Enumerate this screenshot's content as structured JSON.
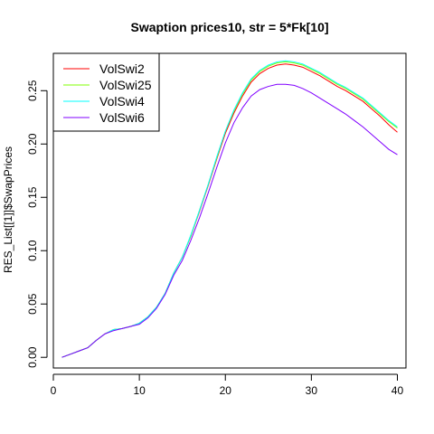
{
  "chart_data": {
    "type": "line",
    "title": "Swaption prices10, str = 5*Fk[10]",
    "xlabel": "",
    "ylabel": "RES_List[[1]]$SwapPrices",
    "xlim": [
      0,
      41
    ],
    "ylim": [
      -0.01,
      0.285
    ],
    "x_ticks": [
      0,
      10,
      20,
      30,
      40
    ],
    "x_tick_labels": [
      "0",
      "10",
      "20",
      "30",
      "40"
    ],
    "y_ticks": [
      0.0,
      0.05,
      0.1,
      0.15,
      0.2,
      0.25
    ],
    "y_tick_labels": [
      "0.00",
      "0.05",
      "0.10",
      "0.15",
      "0.20",
      "0.25"
    ],
    "grid": false,
    "legend_position": "top-left",
    "x": [
      1,
      2,
      3,
      4,
      5,
      6,
      7,
      8,
      9,
      10,
      11,
      12,
      13,
      14,
      15,
      16,
      17,
      18,
      19,
      20,
      21,
      22,
      23,
      24,
      25,
      26,
      27,
      28,
      29,
      30,
      31,
      32,
      33,
      34,
      35,
      36,
      37,
      38,
      39,
      40
    ],
    "series": [
      {
        "name": "VolSwi2",
        "color": "#ff0000",
        "values": [
          0.0,
          0.003,
          0.006,
          0.009,
          0.016,
          0.022,
          0.026,
          0.027,
          0.029,
          0.032,
          0.038,
          0.047,
          0.06,
          0.079,
          0.094,
          0.114,
          0.137,
          0.161,
          0.186,
          0.21,
          0.229,
          0.245,
          0.258,
          0.266,
          0.271,
          0.274,
          0.275,
          0.274,
          0.272,
          0.268,
          0.264,
          0.259,
          0.254,
          0.25,
          0.245,
          0.24,
          0.233,
          0.226,
          0.218,
          0.211
        ]
      },
      {
        "name": "VolSwi25",
        "color": "#80ff00",
        "values": [
          0.0,
          0.003,
          0.006,
          0.009,
          0.016,
          0.022,
          0.026,
          0.027,
          0.029,
          0.032,
          0.038,
          0.047,
          0.06,
          0.079,
          0.094,
          0.114,
          0.138,
          0.162,
          0.187,
          0.212,
          0.231,
          0.247,
          0.26,
          0.268,
          0.273,
          0.276,
          0.277,
          0.276,
          0.274,
          0.27,
          0.266,
          0.261,
          0.256,
          0.252,
          0.247,
          0.242,
          0.235,
          0.228,
          0.221,
          0.215
        ]
      },
      {
        "name": "VolSwi4",
        "color": "#00ffff",
        "values": [
          0.0,
          0.003,
          0.006,
          0.009,
          0.016,
          0.022,
          0.026,
          0.027,
          0.029,
          0.032,
          0.038,
          0.047,
          0.06,
          0.079,
          0.094,
          0.115,
          0.138,
          0.162,
          0.188,
          0.212,
          0.232,
          0.248,
          0.261,
          0.269,
          0.274,
          0.277,
          0.278,
          0.277,
          0.275,
          0.271,
          0.267,
          0.262,
          0.257,
          0.253,
          0.248,
          0.243,
          0.236,
          0.229,
          0.222,
          0.216
        ]
      },
      {
        "name": "VolSwi6",
        "color": "#8000ff",
        "values": [
          0.0,
          0.003,
          0.006,
          0.009,
          0.016,
          0.022,
          0.025,
          0.027,
          0.029,
          0.031,
          0.037,
          0.046,
          0.059,
          0.077,
          0.091,
          0.11,
          0.131,
          0.154,
          0.178,
          0.201,
          0.22,
          0.234,
          0.245,
          0.251,
          0.254,
          0.256,
          0.256,
          0.255,
          0.252,
          0.248,
          0.243,
          0.238,
          0.233,
          0.228,
          0.222,
          0.216,
          0.209,
          0.202,
          0.195,
          0.19
        ]
      }
    ]
  }
}
